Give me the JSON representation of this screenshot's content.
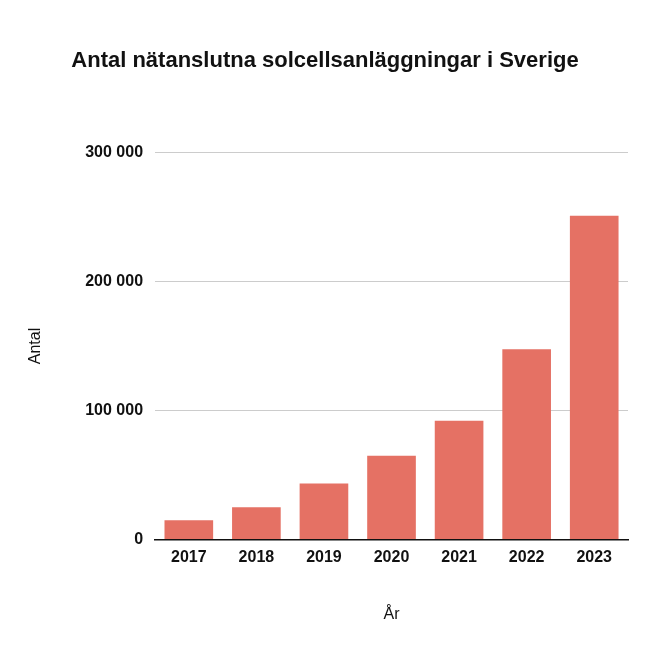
{
  "chart_data": {
    "type": "bar",
    "title": "Antal nätanslutna solcellsanläggningar i Sverige",
    "x_label": "År",
    "y_label": "Antal",
    "categories": [
      "2017",
      "2018",
      "2019",
      "2020",
      "2021",
      "2022",
      "2023"
    ],
    "values": [
      15000,
      25000,
      43500,
      65000,
      92000,
      147500,
      251000
    ],
    "color": "#e57164",
    "ylim": [
      0,
      300000
    ],
    "yticks": [
      0,
      {
        "value": 100000,
        "label": "100 000"
      },
      {
        "value": 200000,
        "label": "200 000"
      },
      {
        "value": 300000,
        "label": "300 000"
      }
    ],
    "grid": true
  }
}
